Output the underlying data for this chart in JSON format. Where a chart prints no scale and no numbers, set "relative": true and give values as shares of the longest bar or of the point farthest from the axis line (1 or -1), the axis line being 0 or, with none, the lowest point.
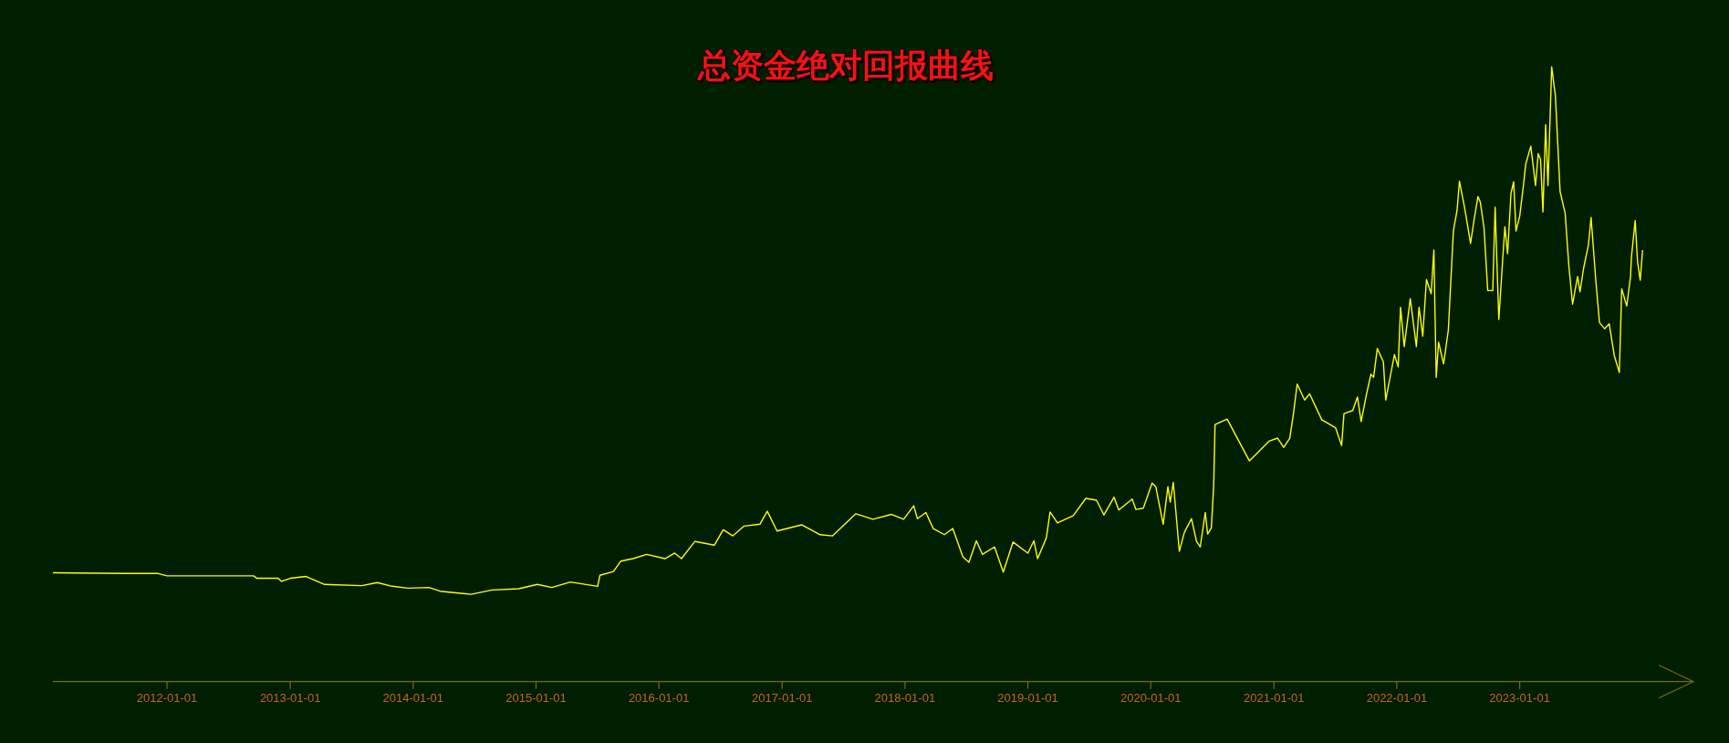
{
  "chart_data": {
    "type": "line",
    "title": "总资金绝对回报曲线",
    "relative": true,
    "xlim": [
      "2011-01-27",
      "2024-05-31"
    ],
    "xticks": [
      "2012-01-01",
      "2013-01-01",
      "2014-01-01",
      "2015-01-01",
      "2016-01-01",
      "2017-01-01",
      "2018-01-01",
      "2019-01-01",
      "2020-01-01",
      "2021-01-01",
      "2022-01-01",
      "2023-01-01"
    ],
    "series": [
      {
        "color": "#ffff00",
        "x": [
          "2011-01-27",
          "2011-08-30",
          "2011-12-03",
          "2012-01-01",
          "2012-09-14",
          "2012-09-24",
          "2012-11-26",
          "2012-12-06",
          "2013-01-01",
          "2013-02-17",
          "2013-04-13",
          "2013-08-01",
          "2013-09-17",
          "2013-10-31",
          "2013-12-17",
          "2014-02-17",
          "2014-03-22",
          "2014-06-22",
          "2014-08-23",
          "2014-11-11",
          "2015-01-05",
          "2015-02-17",
          "2015-04-13",
          "2015-07-03",
          "2015-07-10",
          "2015-08-19",
          "2015-09-10",
          "2015-10-16",
          "2015-11-26",
          "2016-01-19",
          "2016-02-17",
          "2016-03-08",
          "2016-04-17",
          "2016-06-14",
          "2016-07-10",
          "2016-08-08",
          "2016-09-10",
          "2016-10-27",
          "2016-11-18",
          "2016-12-17",
          "2017-02-28",
          "2017-04-24",
          "2017-05-31",
          "2017-08-08",
          "2017-09-28",
          "2017-11-22",
          "2017-12-28",
          "2018-01-27",
          "2018-02-07",
          "2018-03-04",
          "2018-03-26",
          "2018-04-28",
          "2018-05-23",
          "2018-06-22",
          "2018-07-10",
          "2018-08-01",
          "2018-08-19",
          "2018-09-24",
          "2018-10-20",
          "2018-11-18",
          "2019-01-01",
          "2019-01-19",
          "2019-01-30",
          "2019-02-25",
          "2019-03-08",
          "2019-03-30",
          "2019-05-16",
          "2019-06-22",
          "2019-07-24",
          "2019-08-15",
          "2019-09-14",
          "2019-09-28",
          "2019-11-07",
          "2019-11-18",
          "2019-12-10",
          "2020-01-05",
          "2020-01-16",
          "2020-02-07",
          "2020-02-21",
          "2020-02-28",
          "2020-03-08",
          "2020-03-26",
          "2020-04-10",
          "2020-05-01",
          "2020-05-16",
          "2020-05-27",
          "2020-06-11",
          "2020-06-18",
          "2020-06-29",
          "2020-07-06",
          "2020-07-10",
          "2020-08-15",
          "2020-10-20",
          "2020-12-17",
          "2021-01-12",
          "2021-01-30",
          "2021-02-17",
          "2021-02-28",
          "2021-03-11",
          "2021-04-02",
          "2021-04-17",
          "2021-05-23",
          "2021-07-03",
          "2021-07-21",
          "2021-07-28",
          "2021-08-23",
          "2021-09-06",
          "2021-09-17",
          "2021-10-02",
          "2021-10-16",
          "2021-10-24",
          "2021-11-04",
          "2021-11-22",
          "2021-11-29",
          "2021-12-25",
          "2022-01-05",
          "2022-01-12",
          "2022-01-23",
          "2022-02-10",
          "2022-02-28",
          "2022-03-08",
          "2022-03-19",
          "2022-03-30",
          "2022-04-13",
          "2022-04-21",
          "2022-04-28",
          "2022-05-05",
          "2022-05-20",
          "2022-06-03",
          "2022-06-18",
          "2022-06-29",
          "2022-07-06",
          "2022-07-21",
          "2022-08-08",
          "2022-08-19",
          "2022-08-30",
          "2022-09-06",
          "2022-09-17",
          "2022-09-28",
          "2022-10-13",
          "2022-10-20",
          "2022-10-24",
          "2022-10-31",
          "2022-11-11",
          "2022-11-18",
          "2022-11-26",
          "2022-12-06",
          "2022-12-14",
          "2022-12-21",
          "2023-01-01",
          "2023-01-12",
          "2023-01-19",
          "2023-02-03",
          "2023-02-17",
          "2023-02-25",
          "2023-03-04",
          "2023-03-11",
          "2023-03-19",
          "2023-03-26",
          "2023-04-06",
          "2023-04-17",
          "2023-05-01",
          "2023-05-16",
          "2023-05-27",
          "2023-06-07",
          "2023-06-22",
          "2023-06-29",
          "2023-07-10",
          "2023-07-24",
          "2023-08-01",
          "2023-08-15",
          "2023-08-26",
          "2023-09-10",
          "2023-09-24",
          "2023-10-09",
          "2023-10-24",
          "2023-10-31",
          "2023-11-15",
          "2023-11-26",
          "2023-11-29",
          "2023-12-10",
          "2023-12-17",
          "2023-12-25",
          "2024-01-01"
        ],
        "values": [
          0.177,
          0.176,
          0.176,
          0.172,
          0.172,
          0.168,
          0.168,
          0.163,
          0.168,
          0.171,
          0.158,
          0.156,
          0.161,
          0.155,
          0.152,
          0.153,
          0.147,
          0.142,
          0.149,
          0.151,
          0.158,
          0.153,
          0.162,
          0.155,
          0.173,
          0.179,
          0.196,
          0.2,
          0.207,
          0.2,
          0.209,
          0.2,
          0.228,
          0.222,
          0.247,
          0.237,
          0.253,
          0.256,
          0.277,
          0.245,
          0.255,
          0.239,
          0.237,
          0.273,
          0.264,
          0.272,
          0.264,
          0.286,
          0.265,
          0.275,
          0.249,
          0.239,
          0.249,
          0.203,
          0.194,
          0.229,
          0.207,
          0.219,
          0.178,
          0.227,
          0.209,
          0.229,
          0.2,
          0.234,
          0.276,
          0.258,
          0.27,
          0.298,
          0.295,
          0.271,
          0.3,
          0.279,
          0.297,
          0.28,
          0.282,
          0.323,
          0.317,
          0.256,
          0.317,
          0.292,
          0.324,
          0.212,
          0.243,
          0.265,
          0.228,
          0.219,
          0.275,
          0.24,
          0.25,
          0.319,
          0.418,
          0.427,
          0.359,
          0.391,
          0.396,
          0.381,
          0.396,
          0.436,
          0.484,
          0.458,
          0.468,
          0.426,
          0.413,
          0.384,
          0.436,
          0.441,
          0.463,
          0.423,
          0.465,
          0.5,
          0.495,
          0.542,
          0.52,
          0.458,
          0.532,
          0.512,
          0.609,
          0.545,
          0.623,
          0.545,
          0.609,
          0.562,
          0.654,
          0.631,
          0.702,
          0.495,
          0.552,
          0.517,
          0.572,
          0.733,
          0.767,
          0.814,
          0.772,
          0.713,
          0.753,
          0.789,
          0.78,
          0.738,
          0.636,
          0.636,
          0.772,
          0.703,
          0.589,
          0.683,
          0.74,
          0.696,
          0.794,
          0.813,
          0.733,
          0.757,
          0.807,
          0.842,
          0.871,
          0.807,
          0.859,
          0.849,
          0.764,
          0.906,
          0.807,
          1.0,
          0.953,
          0.797,
          0.762,
          0.676,
          0.614,
          0.659,
          0.634,
          0.673,
          0.71,
          0.755,
          0.653,
          0.584,
          0.574,
          0.582,
          0.53,
          0.503,
          0.639,
          0.611,
          0.658,
          0.691,
          0.75,
          0.683,
          0.653,
          0.702
        ]
      }
    ]
  }
}
